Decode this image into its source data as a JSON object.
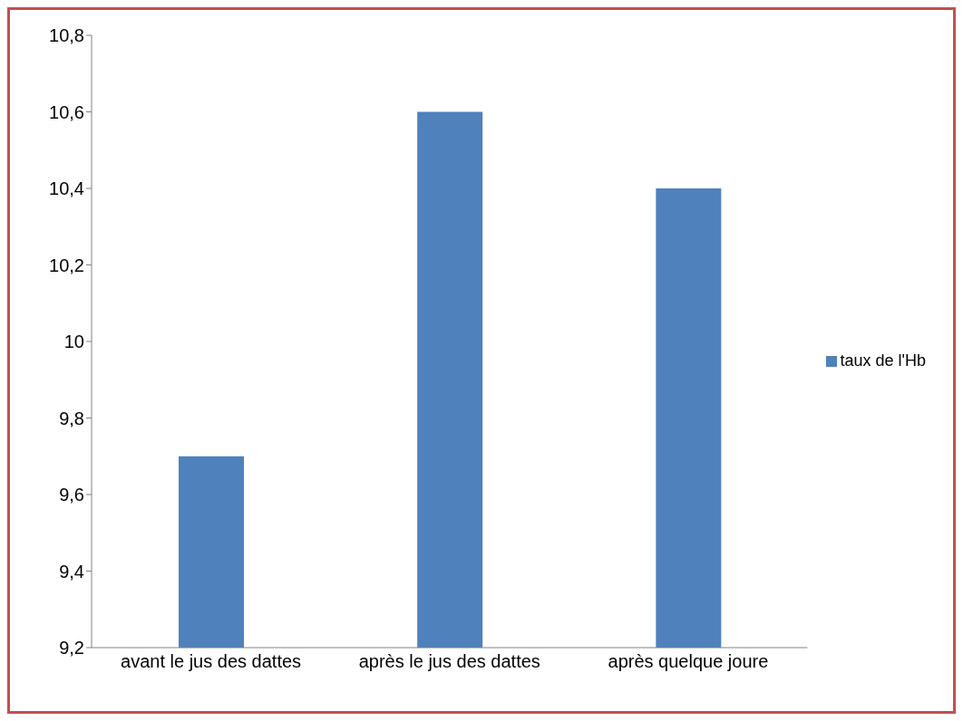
{
  "chart_data": {
    "type": "bar",
    "categories": [
      "avant le jus des dattes",
      "après le jus des dattes",
      "après quelque joure"
    ],
    "series": [
      {
        "name": "taux de l'Hb",
        "color": "#4f81bd",
        "values": [
          9.7,
          10.6,
          10.4
        ]
      }
    ],
    "ylim": [
      9.2,
      10.8
    ],
    "yticks": [
      {
        "value": 9.2,
        "label": "9,2"
      },
      {
        "value": 9.4,
        "label": "9,4"
      },
      {
        "value": 9.6,
        "label": "9,6"
      },
      {
        "value": 9.8,
        "label": "9,8"
      },
      10,
      {
        "value": 10.2,
        "label": "10,2"
      },
      {
        "value": 10.4,
        "label": "10,4"
      },
      {
        "value": 10.6,
        "label": "10,6"
      },
      {
        "value": 10.8,
        "label": "10,8"
      }
    ],
    "grid": false,
    "legend": "right"
  }
}
